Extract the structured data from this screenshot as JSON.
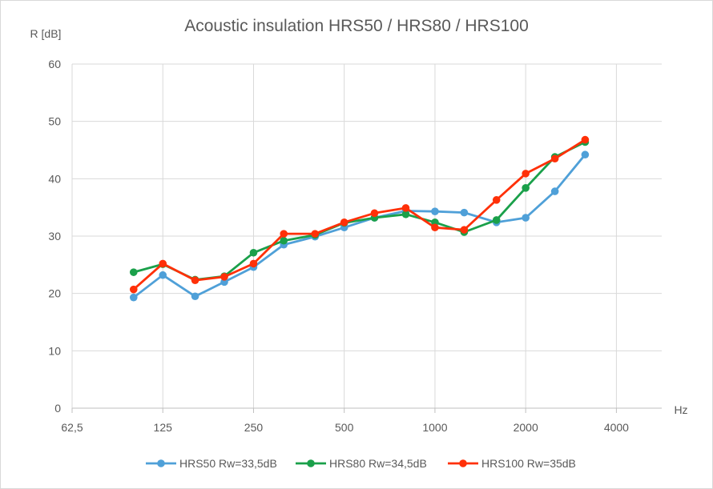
{
  "chart_data": {
    "type": "line",
    "title": "Acoustic insulation HRS50 / HRS80 / HRS100",
    "ylabel": "R [dB]",
    "xlabel": "Hz",
    "xscale": "log2",
    "xlim": [
      62.5,
      5656
    ],
    "ylim": [
      0,
      60
    ],
    "xticks": [
      62.5,
      125,
      250,
      500,
      1000,
      2000,
      4000
    ],
    "xtick_labels": [
      "62,5",
      "125",
      "250",
      "500",
      "1000",
      "2000",
      "4000"
    ],
    "yticks": [
      0,
      10,
      20,
      30,
      40,
      50,
      60
    ],
    "ytick_labels": [
      "0",
      "10",
      "20",
      "30",
      "40",
      "50",
      "60"
    ],
    "grid": true,
    "legend_position": "bottom",
    "x": [
      100,
      125,
      160,
      200,
      250,
      315,
      400,
      500,
      630,
      800,
      1000,
      1250,
      1600,
      2000,
      2500,
      3150
    ],
    "series": [
      {
        "name": "HRS50 Rw=33,5dB",
        "color": "#4fa0d8",
        "values": [
          19.3,
          23.2,
          19.5,
          22.0,
          24.6,
          28.5,
          29.9,
          31.5,
          33.2,
          34.4,
          34.3,
          34.1,
          32.4,
          33.2,
          37.8,
          44.2
        ]
      },
      {
        "name": "HRS80 Rw=34,5dB",
        "color": "#1aa04a",
        "values": [
          23.7,
          25.1,
          22.4,
          23.0,
          27.1,
          29.2,
          30.2,
          32.3,
          33.2,
          33.8,
          32.4,
          30.7,
          32.8,
          38.4,
          43.8,
          46.4
        ]
      },
      {
        "name": "HRS100 Rw=35dB",
        "color": "#ff3008",
        "values": [
          20.7,
          25.2,
          22.3,
          22.9,
          25.2,
          30.4,
          30.4,
          32.4,
          34.0,
          34.9,
          31.5,
          31.1,
          36.3,
          40.9,
          43.5,
          46.8
        ]
      }
    ]
  }
}
